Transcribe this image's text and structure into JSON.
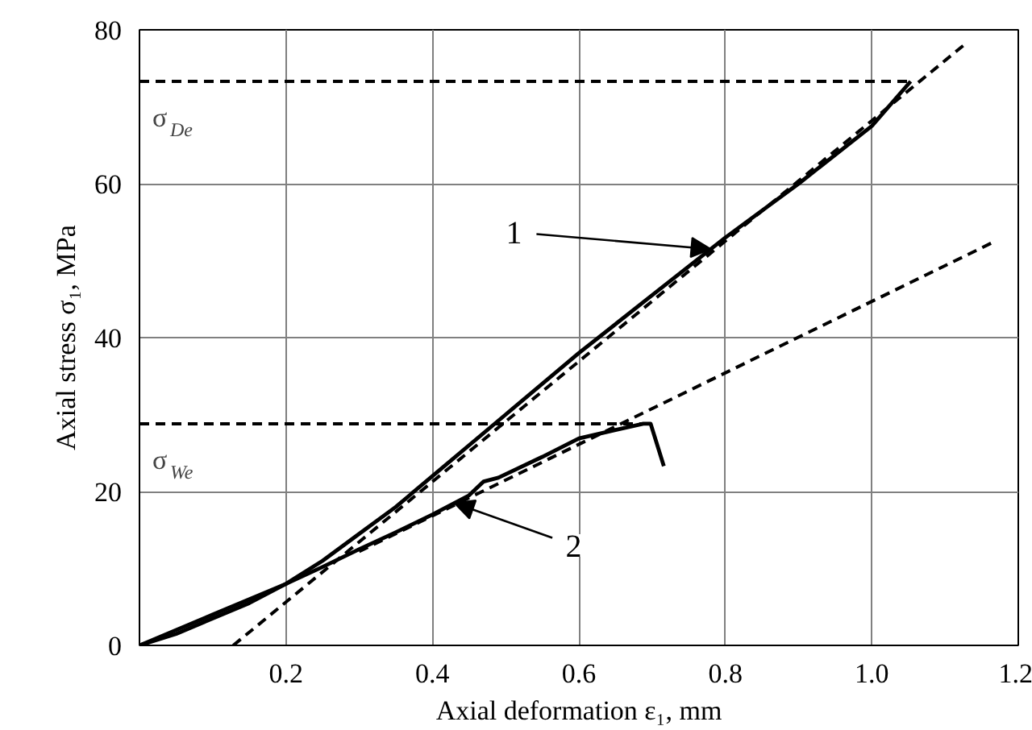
{
  "chart_data": {
    "type": "line",
    "xlabel": "Axial deformation ε₁, mm",
    "ylabel": "Axial stress σ₁, MPa",
    "xlim": [
      0,
      1.2
    ],
    "ylim": [
      0,
      80
    ],
    "xticks": [
      0.2,
      0.4,
      0.6,
      0.8,
      {
        "value": 1.0,
        "label": "1.0"
      },
      1.2
    ],
    "yticks": [
      0,
      20,
      40,
      60,
      80
    ],
    "grid": true,
    "series": [
      {
        "color": "#000000",
        "line_style": "solid",
        "x": [
          0,
          0.05,
          0.1,
          0.15,
          0.2,
          0.25,
          0.3,
          0.35,
          0.4,
          0.5,
          0.6,
          0.7,
          0.8,
          0.9,
          1.0,
          1.053
        ],
        "values": [
          0,
          1.5,
          3.5,
          5.5,
          8,
          11,
          14.5,
          18,
          22,
          30,
          38,
          45.5,
          53,
          60,
          67.5,
          73.3
        ]
      },
      {
        "color": "#000000",
        "line_style": "solid",
        "x": [
          0,
          0.05,
          0.1,
          0.15,
          0.2,
          0.25,
          0.3,
          0.35,
          0.4,
          0.45,
          0.47,
          0.49,
          0.55,
          0.6,
          0.65,
          0.688,
          0.698,
          0.716
        ],
        "values": [
          0,
          2,
          4,
          6,
          8,
          10.2,
          12.5,
          14.7,
          17,
          19.5,
          21.3,
          21.8,
          24.5,
          26.9,
          28,
          28.8,
          28.8,
          23.3
        ]
      },
      {
        "color": "#000000",
        "line_style": "dashed",
        "x": [
          0.128,
          1.128
        ],
        "values": [
          0,
          78.2
        ]
      },
      {
        "color": "#000000",
        "line_style": "dashed",
        "x": [
          0.3,
          1.17
        ],
        "values": [
          12.2,
          52.6
        ]
      },
      {
        "color": "#000000",
        "line_style": "dashed",
        "x": [
          0,
          1.053
        ],
        "values": [
          73.3,
          73.3
        ]
      },
      {
        "color": "#000000",
        "line_style": "dashed",
        "x": [
          0,
          0.69
        ],
        "values": [
          28.8,
          28.8
        ]
      }
    ],
    "annotations": [
      {
        "text": "1",
        "x": 0.78,
        "y": 51.5
      },
      {
        "text": "2",
        "x": 0.43,
        "y": 18.5
      },
      {
        "text": "σ$_{De}$",
        "x": 0.0,
        "y": 73.3
      },
      {
        "text": "σ$_{We}$",
        "x": 0.0,
        "y": 28.8
      }
    ]
  }
}
